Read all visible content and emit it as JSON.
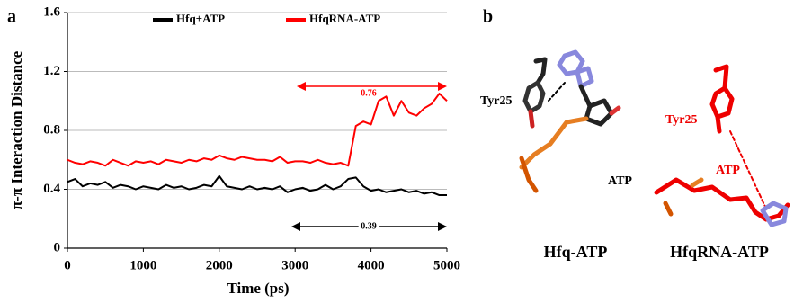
{
  "panel_labels": [
    "a",
    "b"
  ],
  "chart_data": {
    "type": "line",
    "xlabel": "Time (ps)",
    "ylabel": "π-π Interaction Distance",
    "x": [
      0,
      100,
      200,
      300,
      400,
      500,
      600,
      700,
      800,
      900,
      1000,
      1100,
      1200,
      1300,
      1400,
      1500,
      1600,
      1700,
      1800,
      1900,
      2000,
      2100,
      2200,
      2300,
      2400,
      2500,
      2600,
      2700,
      2800,
      2900,
      3000,
      3100,
      3200,
      3300,
      3400,
      3500,
      3600,
      3700,
      3800,
      3900,
      4000,
      4100,
      4200,
      4300,
      4400,
      4500,
      4600,
      4700,
      4800,
      4900,
      5000
    ],
    "series": [
      {
        "name": "Hfq+ATP",
        "color": "#000000",
        "values": [
          0.45,
          0.47,
          0.42,
          0.44,
          0.43,
          0.45,
          0.41,
          0.43,
          0.42,
          0.4,
          0.42,
          0.41,
          0.4,
          0.43,
          0.41,
          0.42,
          0.4,
          0.41,
          0.43,
          0.42,
          0.49,
          0.42,
          0.41,
          0.4,
          0.42,
          0.4,
          0.41,
          0.4,
          0.42,
          0.38,
          0.4,
          0.41,
          0.39,
          0.4,
          0.43,
          0.4,
          0.42,
          0.47,
          0.48,
          0.42,
          0.39,
          0.4,
          0.38,
          0.39,
          0.4,
          0.38,
          0.39,
          0.37,
          0.38,
          0.36,
          0.36
        ]
      },
      {
        "name": "HfqRNA-ATP",
        "color": "#ff0000",
        "values": [
          0.6,
          0.58,
          0.57,
          0.59,
          0.58,
          0.56,
          0.6,
          0.58,
          0.56,
          0.59,
          0.58,
          0.59,
          0.57,
          0.6,
          0.59,
          0.58,
          0.6,
          0.59,
          0.61,
          0.6,
          0.63,
          0.61,
          0.6,
          0.62,
          0.61,
          0.6,
          0.6,
          0.59,
          0.62,
          0.58,
          0.59,
          0.59,
          0.58,
          0.6,
          0.58,
          0.57,
          0.58,
          0.56,
          0.83,
          0.86,
          0.84,
          1.0,
          1.03,
          0.9,
          1.0,
          0.92,
          0.9,
          0.95,
          0.98,
          1.05,
          1.0
        ]
      }
    ],
    "annotations": [
      {
        "text": "0.76",
        "color": "#ff0000"
      },
      {
        "text": "0.39",
        "color": "#000000"
      }
    ],
    "xlim": [
      0,
      5000
    ],
    "xticks": [
      0,
      1000,
      2000,
      3000,
      4000,
      5000
    ],
    "ylim": [
      0,
      1.6
    ],
    "yticks": [
      0,
      0.4,
      0.8,
      1.2,
      1.6
    ],
    "grid": true
  },
  "figure_b": {
    "left": {
      "caption": "Hfq-ATP",
      "residue": "Tyr25",
      "ligand": "ATP"
    },
    "right": {
      "caption": "HfqRNA-ATP",
      "residue": "Tyr25",
      "ligand": "ATP"
    }
  }
}
